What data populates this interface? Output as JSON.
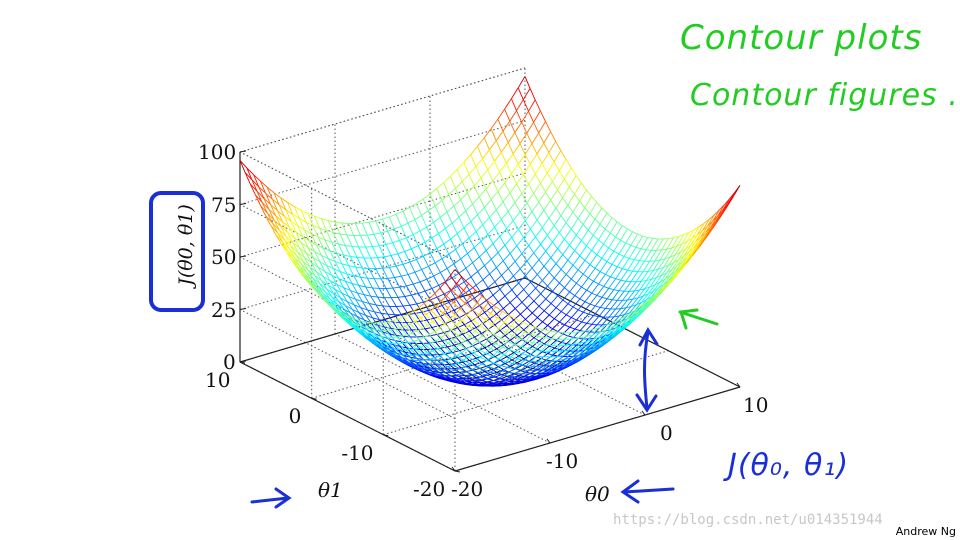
{
  "slide": {
    "handwritten_notes": {
      "line1": "Contour plots",
      "line2": "Contour figures .",
      "function_label": "J(θ₀, θ₁)"
    },
    "watermark": "https://blog.csdn.net/u014351944",
    "credit": "Andrew Ng"
  },
  "colors": {
    "handwriting_green": "#22cc22",
    "handwriting_blue": "#1a2fd6",
    "surface_colormap": "jet"
  },
  "chart_data": {
    "type": "surface",
    "function": "J(θ0, θ1) — bowl-shaped cost surface",
    "xlabel": "θ0",
    "ylabel": "θ1",
    "zlabel": "J(θ0, θ1)",
    "xlim": [
      -20,
      10
    ],
    "ylim": [
      -20,
      10
    ],
    "zlim": [
      0,
      100
    ],
    "x_ticks": [
      "-20",
      "-10",
      "0",
      "10"
    ],
    "y_ticks": [
      "-20",
      "-10",
      "0",
      "10"
    ],
    "z_ticks": [
      "0",
      "25",
      "50",
      "75",
      "100"
    ],
    "grid": true,
    "colormap": "jet",
    "surface_min": [
      -5,
      -5,
      0
    ]
  },
  "icons": {
    "right_arrow": "right-arrow-icon",
    "left_arrow": "left-arrow-icon",
    "double_arrow": "double-arrow-icon",
    "green_arrow": "green-arrow-icon"
  }
}
